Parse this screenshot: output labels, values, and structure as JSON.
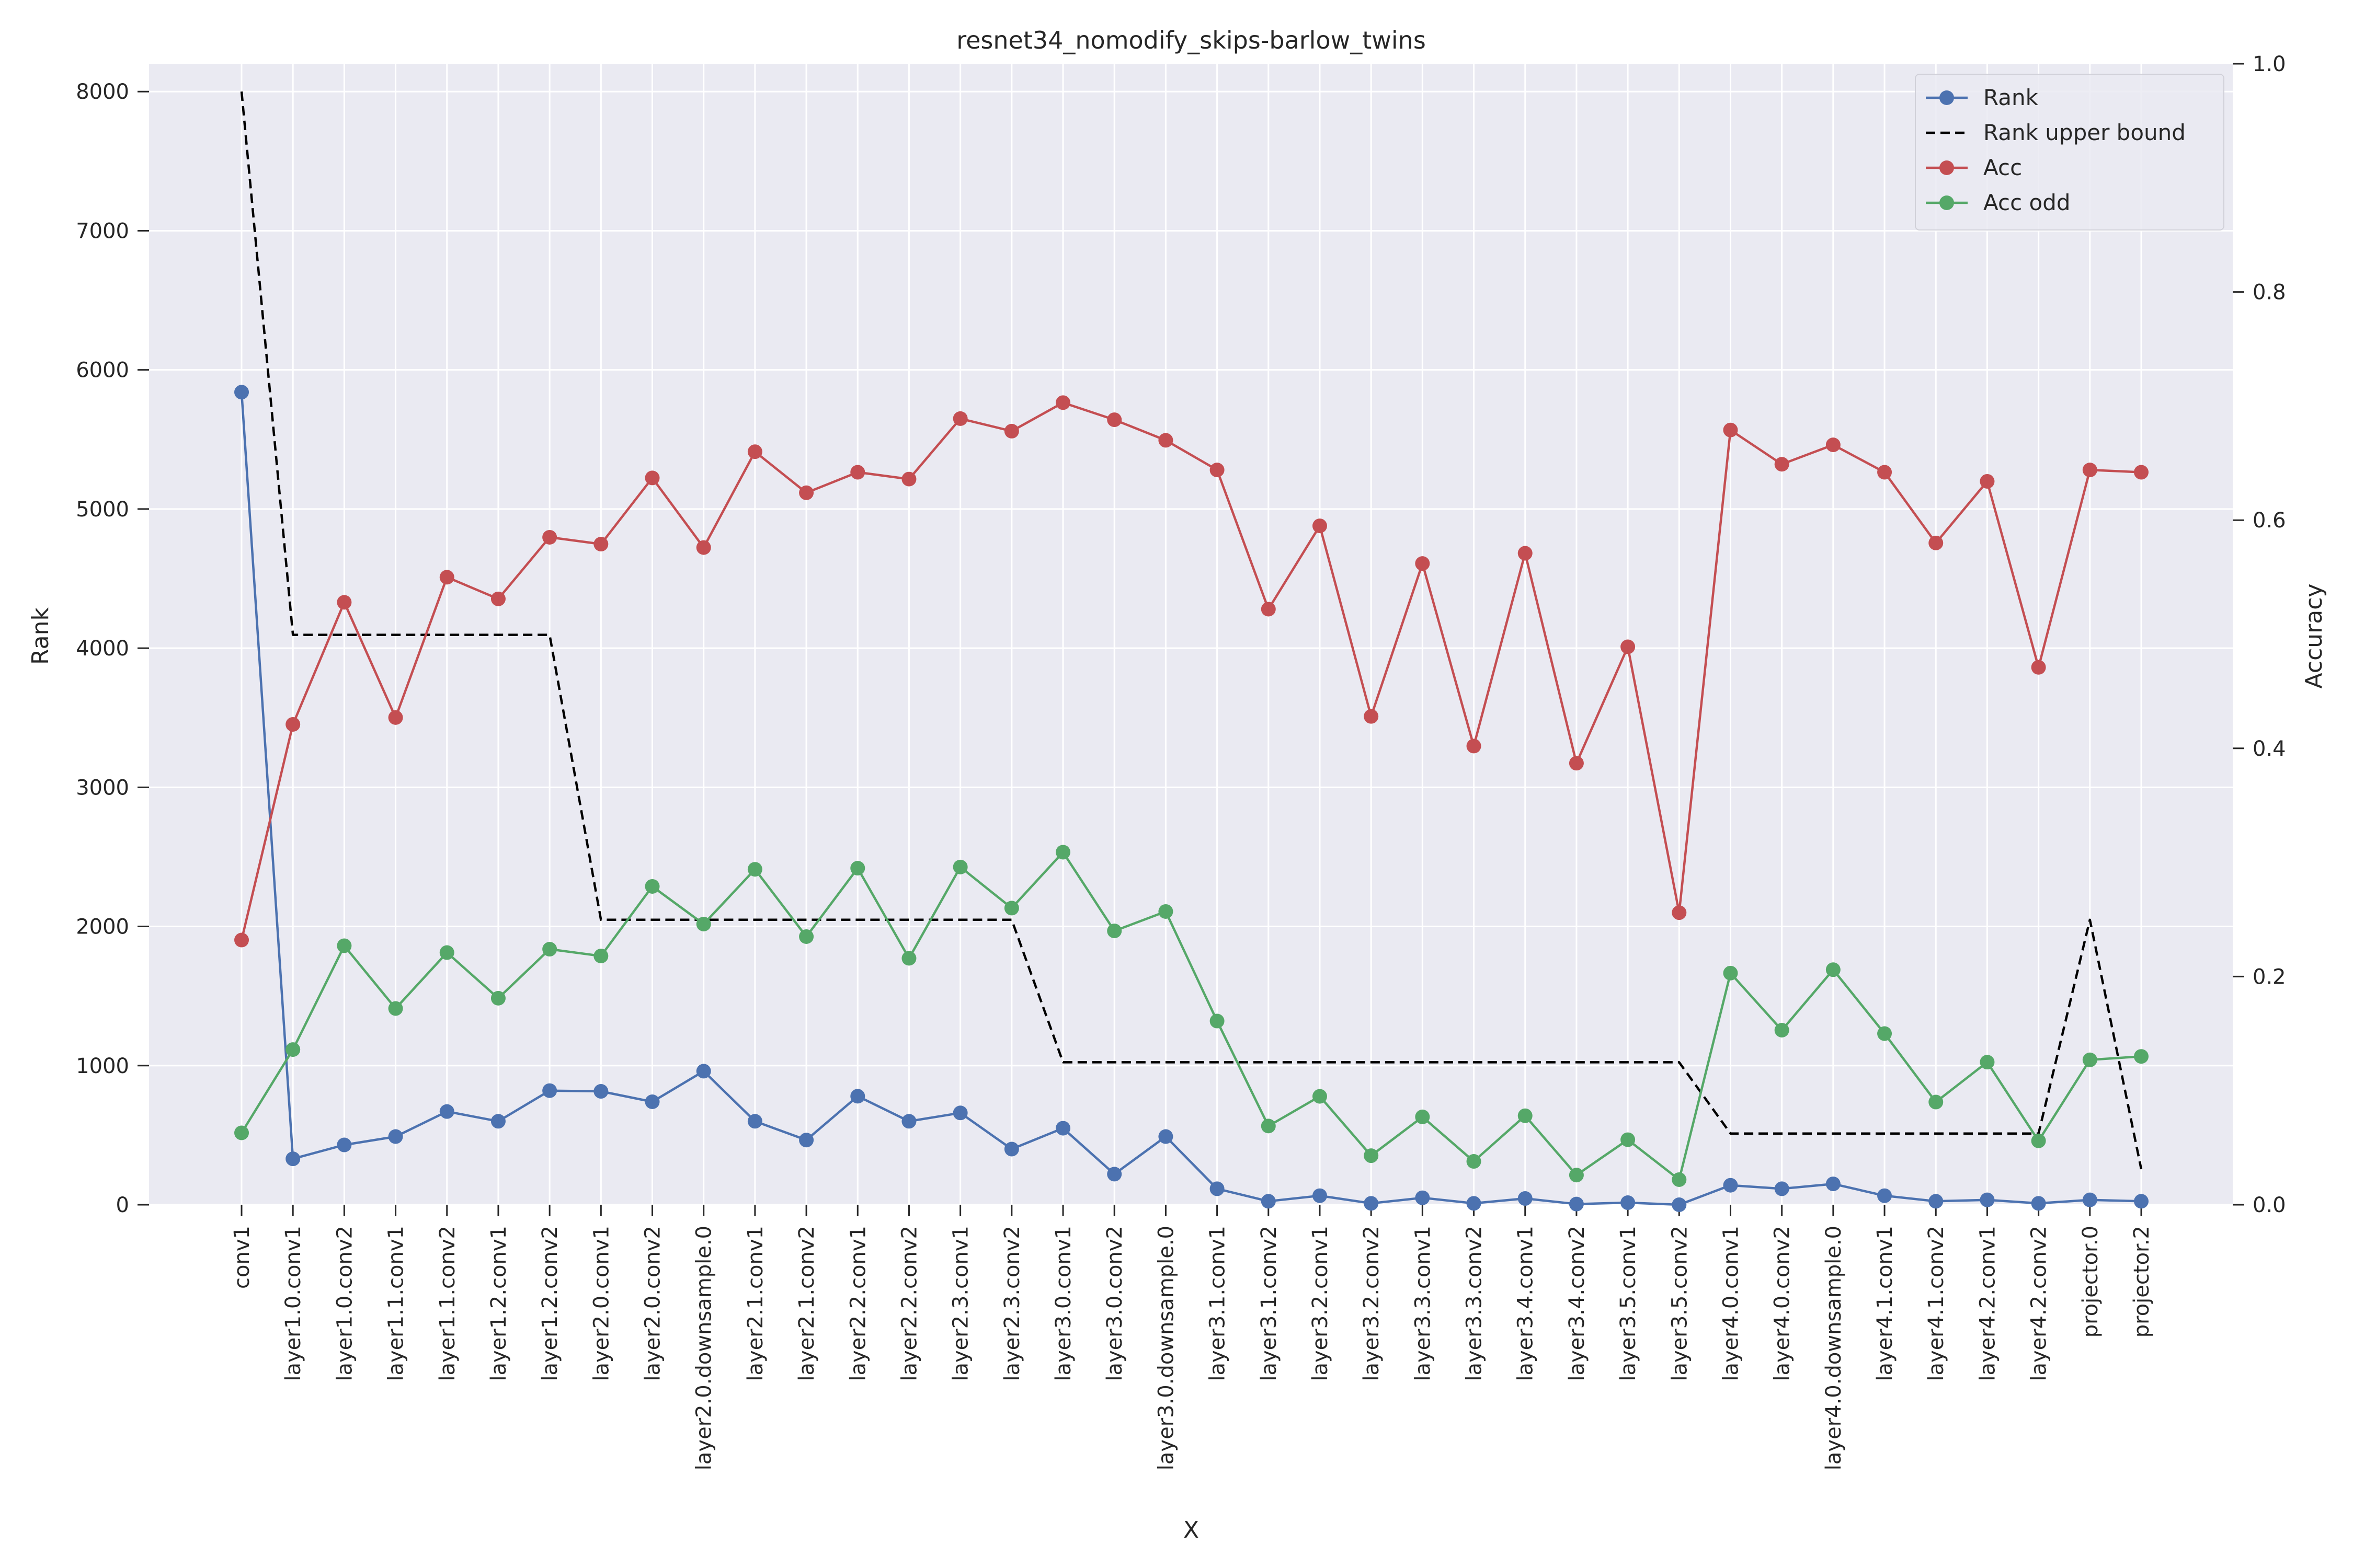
{
  "chart_data": {
    "type": "line",
    "title": "resnet34_nomodify_skips-barlow_twins",
    "xlabel": "X",
    "ylabel_left": "Rank",
    "ylabel_right": "Accuracy",
    "ylim_left": [
      0,
      8200
    ],
    "ylim_right": [
      0,
      1.0
    ],
    "yticks_left": [
      0,
      1000,
      2000,
      3000,
      4000,
      5000,
      6000,
      7000,
      8000
    ],
    "yticks_right": [
      "0.0",
      "0.2",
      "0.4",
      "0.6",
      "0.8",
      "1.0"
    ],
    "grid": true,
    "legend_position": "top-right",
    "categories": [
      "conv1",
      "layer1.0.conv1",
      "layer1.0.conv2",
      "layer1.1.conv1",
      "layer1.1.conv2",
      "layer1.2.conv1",
      "layer1.2.conv2",
      "layer2.0.conv1",
      "layer2.0.conv2",
      "layer2.0.downsample.0",
      "layer2.1.conv1",
      "layer2.1.conv2",
      "layer2.2.conv1",
      "layer2.2.conv2",
      "layer2.3.conv1",
      "layer2.3.conv2",
      "layer3.0.conv1",
      "layer3.0.conv2",
      "layer3.0.downsample.0",
      "layer3.1.conv1",
      "layer3.1.conv2",
      "layer3.2.conv1",
      "layer3.2.conv2",
      "layer3.3.conv1",
      "layer3.3.conv2",
      "layer3.4.conv1",
      "layer3.4.conv2",
      "layer3.5.conv1",
      "layer3.5.conv2",
      "layer4.0.conv1",
      "layer4.0.conv2",
      "layer4.0.downsample.0",
      "layer4.1.conv1",
      "layer4.1.conv2",
      "layer4.2.conv1",
      "layer4.2.conv2",
      "projector.0",
      "projector.2"
    ],
    "series": [
      {
        "name": "Rank",
        "axis": "left",
        "color": "#4c72b0",
        "style": "solid",
        "marker": true,
        "values": [
          5840,
          330,
          430,
          490,
          670,
          600,
          820,
          815,
          740,
          960,
          600,
          465,
          780,
          600,
          660,
          400,
          550,
          220,
          490,
          115,
          25,
          65,
          10,
          50,
          10,
          45,
          5,
          15,
          0,
          140,
          115,
          150,
          65,
          25,
          35,
          10,
          35,
          25
        ]
      },
      {
        "name": "Rank upper bound",
        "axis": "left",
        "color": "#000000",
        "style": "dashed",
        "marker": false,
        "values": [
          8000,
          4096,
          4096,
          4096,
          4096,
          4096,
          4096,
          2048,
          2048,
          2048,
          2048,
          2048,
          2048,
          2048,
          2048,
          2048,
          1024,
          1024,
          1024,
          1024,
          1024,
          1024,
          1024,
          1024,
          1024,
          1024,
          1024,
          1024,
          1024,
          512,
          512,
          512,
          512,
          512,
          512,
          512,
          2048,
          256
        ]
      },
      {
        "name": "Acc",
        "axis": "right",
        "color": "#c44e52",
        "style": "solid",
        "marker": true,
        "values": [
          0.232,
          0.421,
          0.528,
          0.427,
          0.55,
          0.531,
          0.585,
          0.579,
          0.637,
          0.576,
          0.66,
          0.624,
          0.642,
          0.636,
          0.689,
          0.678,
          0.703,
          0.688,
          0.67,
          0.644,
          0.522,
          0.595,
          0.428,
          0.562,
          0.402,
          0.571,
          0.387,
          0.489,
          0.256,
          0.679,
          0.649,
          0.666,
          0.642,
          0.58,
          0.634,
          0.471,
          0.644,
          0.642
        ]
      },
      {
        "name": "Acc odd",
        "axis": "right",
        "color": "#55a868",
        "style": "solid",
        "marker": true,
        "values": [
          0.063,
          0.136,
          0.227,
          0.172,
          0.221,
          0.181,
          0.224,
          0.218,
          0.279,
          0.246,
          0.294,
          0.235,
          0.295,
          0.216,
          0.296,
          0.26,
          0.309,
          0.24,
          0.257,
          0.161,
          0.069,
          0.095,
          0.043,
          0.077,
          0.038,
          0.078,
          0.026,
          0.057,
          0.022,
          0.203,
          0.153,
          0.206,
          0.15,
          0.09,
          0.125,
          0.056,
          0.127,
          0.13
        ]
      }
    ]
  }
}
